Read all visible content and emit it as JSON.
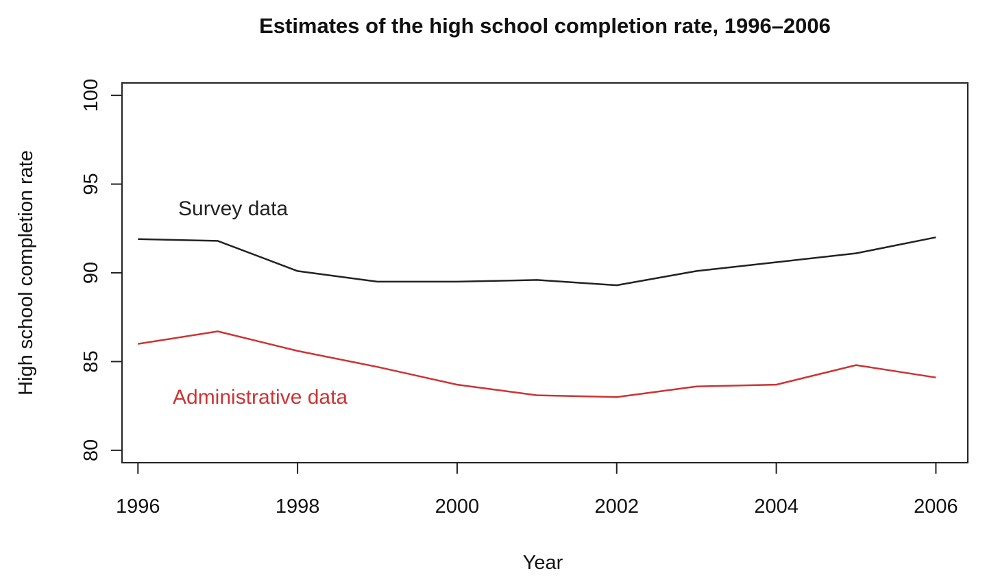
{
  "chart_data": {
    "type": "line",
    "title": "Estimates of the high school completion rate, 1996–2006",
    "xlabel": "Year",
    "ylabel": "High school completion rate",
    "x": [
      1996,
      1997,
      1998,
      1999,
      2000,
      2001,
      2002,
      2003,
      2004,
      2005,
      2006
    ],
    "xlim": [
      1995.8,
      2006.4
    ],
    "ylim": [
      79.3,
      100.7
    ],
    "x_ticks": [
      1996,
      1998,
      2000,
      2002,
      2004,
      2006
    ],
    "y_ticks": [
      80,
      85,
      90,
      95,
      100
    ],
    "grid": false,
    "legend": "none",
    "series": [
      {
        "name": "Survey data",
        "color": "#222222",
        "values": [
          91.9,
          91.8,
          90.1,
          89.5,
          89.5,
          89.6,
          89.3,
          90.1,
          90.6,
          91.1,
          92.0
        ]
      },
      {
        "name": "Administrative data",
        "color": "#cc3333",
        "values": [
          86.0,
          86.7,
          85.6,
          84.7,
          83.7,
          83.1,
          83.0,
          83.6,
          83.7,
          84.8,
          84.1
        ]
      }
    ]
  }
}
